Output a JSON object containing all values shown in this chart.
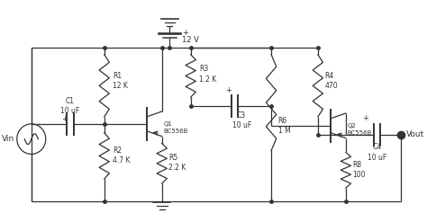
{
  "line_color": "#333333",
  "bg_color": "#ffffff",
  "components": {
    "R1": "R1\n12 K",
    "R2": "R2\n4.7 K",
    "R3": "R3\n1.2 K",
    "R4": "R4\n470",
    "R5": "R5\n2.2 K",
    "R6": "R6\n1 M",
    "R8": "R8\n100",
    "C1": "C1\n10 uF",
    "C3": "C3\n10 uF",
    "C4": "C4\n10 uF",
    "Q1": "Q1\nBC556B",
    "Q2": "Q2\nBC556B",
    "Vin": "Vin",
    "Vout": "Vout",
    "VCC": "12 V"
  },
  "figsize": [
    4.74,
    2.47
  ],
  "dpi": 100
}
